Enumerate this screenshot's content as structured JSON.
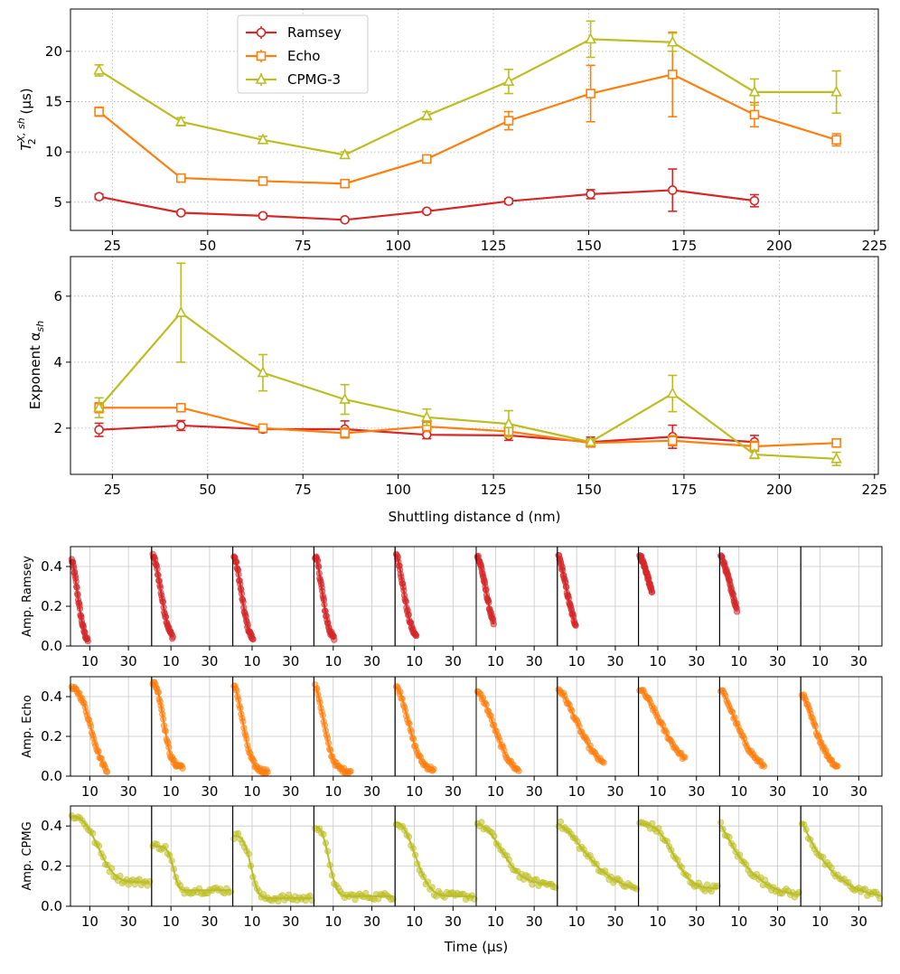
{
  "chart_data": [
    {
      "id": "t2",
      "type": "line",
      "title": "",
      "xlabel": "",
      "ylabel_main": "T",
      "ylabel_sub": "2",
      "ylabel_sup": "X, sh",
      "ylabel_unit": " (μs)",
      "xlim": [
        14,
        226
      ],
      "ylim": [
        2.2,
        24.2
      ],
      "xticks": [
        25,
        50,
        75,
        100,
        125,
        150,
        175,
        200,
        225
      ],
      "yticks": [
        5,
        10,
        15,
        20
      ],
      "legend": [
        "Ramsey",
        "Echo",
        "CPMG-3"
      ],
      "legend_position": "upper-left",
      "series": [
        {
          "name": "Ramsey",
          "color": "#d62728",
          "marker": "circle",
          "x": [
            21.5,
            43,
            64.5,
            86,
            107.5,
            129,
            150.5,
            172,
            193.5
          ],
          "y": [
            5.55,
            3.95,
            3.65,
            3.25,
            4.1,
            5.1,
            5.8,
            6.2,
            5.15
          ],
          "err": [
            0.25,
            0.2,
            0.2,
            0.15,
            0.2,
            0.25,
            0.45,
            2.1,
            0.6
          ]
        },
        {
          "name": "Echo",
          "color": "#ff7f0e",
          "marker": "square",
          "x": [
            21.5,
            43,
            64.5,
            86,
            107.5,
            129,
            150.5,
            172,
            193.5,
            215
          ],
          "y": [
            14.0,
            7.4,
            7.1,
            6.85,
            9.3,
            13.1,
            15.8,
            17.7,
            13.7,
            11.2
          ],
          "err": [
            0.45,
            0.3,
            0.3,
            0.3,
            0.35,
            0.9,
            2.8,
            4.2,
            1.2,
            0.6
          ]
        },
        {
          "name": "CPMG-3",
          "color": "#bcbd22",
          "marker": "triangle",
          "x": [
            21.5,
            43,
            64.5,
            86,
            107.5,
            129,
            150.5,
            172,
            193.5,
            215
          ],
          "y": [
            18.1,
            13.0,
            11.2,
            9.7,
            13.6,
            17.0,
            21.2,
            20.9,
            15.95,
            15.95
          ],
          "err": [
            0.55,
            0.4,
            0.35,
            0.3,
            0.4,
            1.2,
            1.8,
            0.9,
            1.3,
            2.1
          ]
        }
      ]
    },
    {
      "id": "alpha",
      "type": "line",
      "title": "",
      "xlabel": "Shuttling distance d (nm)",
      "ylabel": "Exponent α",
      "ylabel_sub": "sh",
      "xlim": [
        14,
        226
      ],
      "ylim": [
        0.6,
        7.2
      ],
      "xticks": [
        25,
        50,
        75,
        100,
        125,
        150,
        175,
        200,
        225
      ],
      "yticks": [
        2,
        4,
        6
      ],
      "series": [
        {
          "name": "Ramsey",
          "color": "#d62728",
          "marker": "circle",
          "x": [
            21.5,
            43,
            64.5,
            86,
            107.5,
            129,
            150.5,
            172,
            193.5
          ],
          "y": [
            1.95,
            2.08,
            1.97,
            1.97,
            1.8,
            1.78,
            1.58,
            1.74,
            1.58
          ],
          "err": [
            0.2,
            0.15,
            0.1,
            0.25,
            0.12,
            0.15,
            0.15,
            0.35,
            0.2
          ]
        },
        {
          "name": "Echo",
          "color": "#ff7f0e",
          "marker": "square",
          "x": [
            21.5,
            43,
            64.5,
            86,
            107.5,
            129,
            150.5,
            172,
            193.5,
            215
          ],
          "y": [
            2.62,
            2.62,
            2.0,
            1.85,
            2.05,
            1.9,
            1.55,
            1.62,
            1.45,
            1.55
          ],
          "err": [
            0.15,
            0.1,
            0.1,
            0.15,
            0.15,
            0.15,
            0.1,
            0.15,
            0.15,
            0.1
          ]
        },
        {
          "name": "CPMG-3",
          "color": "#bcbd22",
          "marker": "triangle",
          "x": [
            21.5,
            43,
            64.5,
            86,
            107.5,
            129,
            150.5,
            172,
            193.5,
            215
          ],
          "y": [
            2.62,
            5.5,
            3.68,
            2.87,
            2.33,
            2.13,
            1.58,
            3.05,
            1.2,
            1.07
          ],
          "err": [
            0.3,
            1.5,
            0.55,
            0.45,
            0.25,
            0.4,
            0.1,
            0.55,
            0.12,
            0.2
          ]
        }
      ]
    },
    {
      "id": "decays",
      "type": "scatter",
      "title": "",
      "xlabel": "Time (μs)",
      "ylim": [
        0.0,
        0.5
      ],
      "yticks": [
        0.0,
        0.2,
        0.4
      ],
      "ytick_labels": [
        "0.0",
        "0.2",
        "0.4"
      ],
      "xlim": [
        0,
        42
      ],
      "xticks": [
        10,
        30
      ],
      "rows": [
        {
          "name": "Ramsey",
          "ylabel": "Amp. Ramsey",
          "color": "#d62728",
          "panels": [
            {
              "A": 0.44,
              "tau": 5.2,
              "alpha": 1.9,
              "C": 0.0,
              "tmax": 9.0,
              "scatter": 0.012
            },
            {
              "A": 0.44,
              "tau": 6.5,
              "alpha": 2.0,
              "C": 0.02,
              "tmax": 11.0,
              "scatter": 0.012
            },
            {
              "A": 0.44,
              "tau": 6.0,
              "alpha": 2.0,
              "C": 0.015,
              "tmax": 10.5,
              "scatter": 0.012
            },
            {
              "A": 0.44,
              "tau": 5.8,
              "alpha": 2.0,
              "C": 0.02,
              "tmax": 10.5,
              "scatter": 0.015
            },
            {
              "A": 0.45,
              "tau": 6.2,
              "alpha": 1.8,
              "C": 0.02,
              "tmax": 11.0,
              "scatter": 0.012
            },
            {
              "A": 0.46,
              "tau": 7.4,
              "alpha": 1.8,
              "C": 0.0,
              "tmax": 9.0,
              "scatter": 0.012
            },
            {
              "A": 0.46,
              "tau": 7.5,
              "alpha": 1.6,
              "C": 0.0,
              "tmax": 9.5,
              "scatter": 0.012
            },
            {
              "A": 0.46,
              "tau": 10.0,
              "alpha": 1.7,
              "C": 0.0,
              "tmax": 7.0,
              "scatter": 0.012
            },
            {
              "A": 0.46,
              "tau": 9.5,
              "alpha": 1.6,
              "C": 0.0,
              "tmax": 9.0,
              "scatter": 0.012
            }
          ]
        },
        {
          "name": "Echo",
          "ylabel": "Amp. Echo",
          "color": "#ff7f0e",
          "panels": [
            {
              "A": 0.44,
              "tau": 13.0,
              "alpha": 2.6,
              "C": 0.0,
              "tmax": 19.0,
              "scatter": 0.012
            },
            {
              "A": 0.42,
              "tau": 7.5,
              "alpha": 2.6,
              "C": 0.05,
              "tmax": 16.0,
              "scatter": 0.012
            },
            {
              "A": 0.43,
              "tau": 7.0,
              "alpha": 2.0,
              "C": 0.025,
              "tmax": 18.0,
              "scatter": 0.012
            },
            {
              "A": 0.43,
              "tau": 7.0,
              "alpha": 1.9,
              "C": 0.025,
              "tmax": 19.0,
              "scatter": 0.012
            },
            {
              "A": 0.42,
              "tau": 9.3,
              "alpha": 2.0,
              "C": 0.03,
              "tmax": 20.0,
              "scatter": 0.012
            },
            {
              "A": 0.42,
              "tau": 13.0,
              "alpha": 1.9,
              "C": 0.0,
              "tmax": 22.0,
              "scatter": 0.012
            },
            {
              "A": 0.44,
              "tau": 15.8,
              "alpha": 1.6,
              "C": 0.0,
              "tmax": 24.0,
              "scatter": 0.012
            },
            {
              "A": 0.44,
              "tau": 17.7,
              "alpha": 1.6,
              "C": 0.0,
              "tmax": 24.0,
              "scatter": 0.012
            },
            {
              "A": 0.44,
              "tau": 13.7,
              "alpha": 1.5,
              "C": 0.0,
              "tmax": 23.0,
              "scatter": 0.012
            },
            {
              "A": 0.42,
              "tau": 11.2,
              "alpha": 1.5,
              "C": 0.0,
              "tmax": 19.0,
              "scatter": 0.012
            }
          ]
        },
        {
          "name": "CPMG",
          "ylabel": "Amp. CPMG",
          "color": "#bcbd22",
          "panels": [
            {
              "A": 0.33,
              "tau": 17.0,
              "alpha": 2.6,
              "C": 0.12,
              "tmax": 41.0,
              "scatter": 0.018
            },
            {
              "A": 0.22,
              "tau": 12.0,
              "alpha": 5.5,
              "C": 0.08,
              "tmax": 41.0,
              "scatter": 0.018
            },
            {
              "A": 0.31,
              "tau": 10.5,
              "alpha": 3.7,
              "C": 0.04,
              "tmax": 41.0,
              "scatter": 0.018
            },
            {
              "A": 0.35,
              "tau": 9.0,
              "alpha": 2.9,
              "C": 0.05,
              "tmax": 41.0,
              "scatter": 0.018
            },
            {
              "A": 0.37,
              "tau": 13.0,
              "alpha": 2.3,
              "C": 0.05,
              "tmax": 41.0,
              "scatter": 0.018
            },
            {
              "A": 0.3,
              "tau": 17.0,
              "alpha": 2.1,
              "C": 0.11,
              "tmax": 41.0,
              "scatter": 0.018
            },
            {
              "A": 0.34,
              "tau": 21.2,
              "alpha": 1.6,
              "C": 0.07,
              "tmax": 41.0,
              "scatter": 0.018
            },
            {
              "A": 0.32,
              "tau": 20.9,
              "alpha": 3.0,
              "C": 0.09,
              "tmax": 41.0,
              "scatter": 0.018
            },
            {
              "A": 0.37,
              "tau": 16.0,
              "alpha": 1.2,
              "C": 0.04,
              "tmax": 41.0,
              "scatter": 0.018
            },
            {
              "A": 0.4,
              "tau": 15.9,
              "alpha": 1.1,
              "C": 0.03,
              "tmax": 41.0,
              "scatter": 0.018
            }
          ]
        }
      ]
    }
  ]
}
